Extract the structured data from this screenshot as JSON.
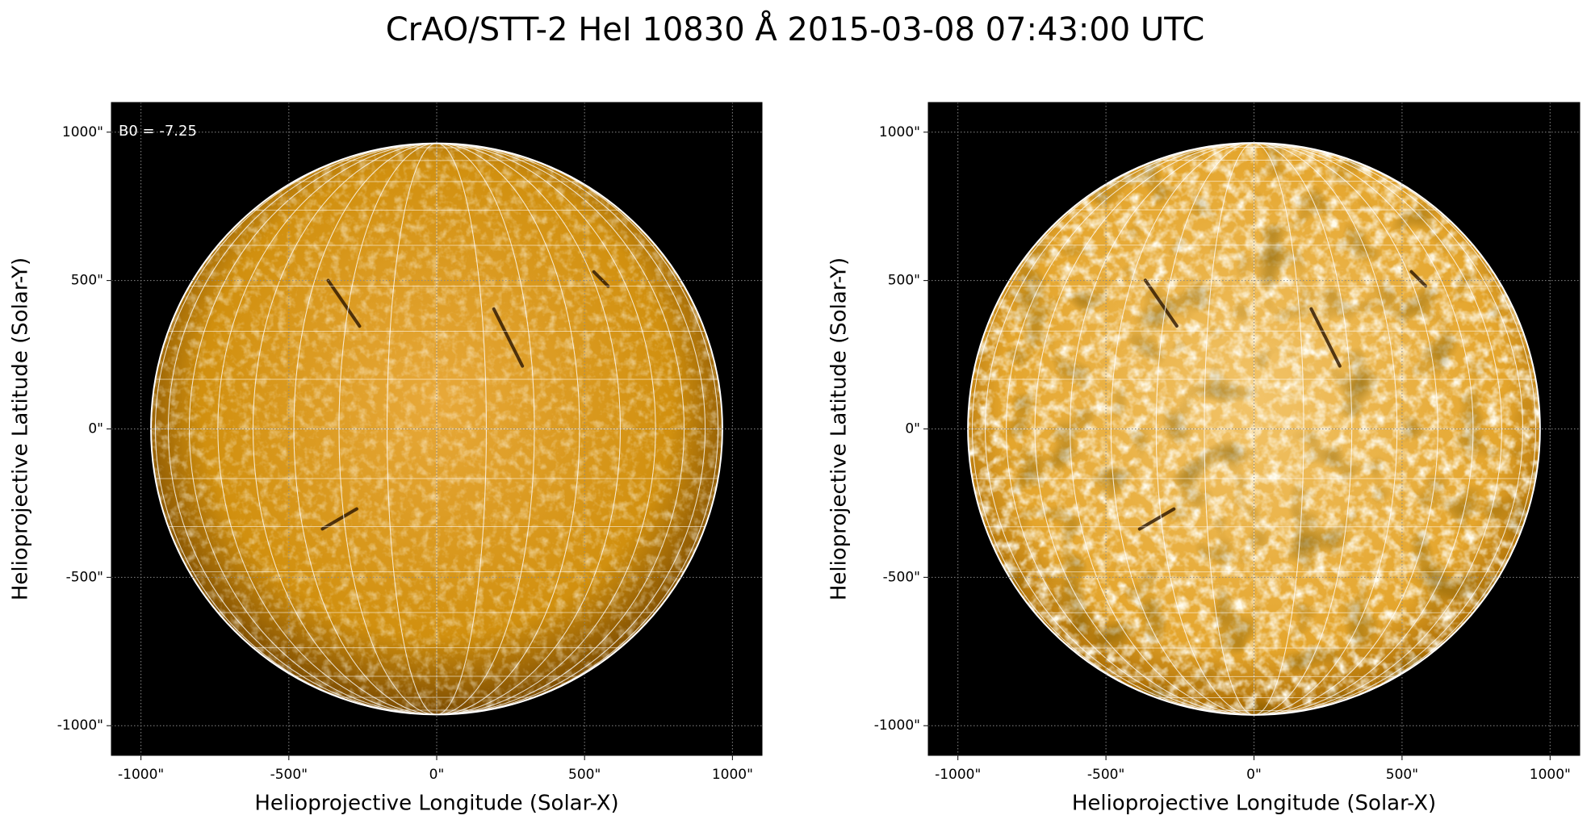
{
  "title": "CrAO/STT-2 HeI 10830 Å 2015-03-08 07:43:00 UTC",
  "chart_data": [
    {
      "type": "image",
      "annotation": "B0 = -7.25",
      "xlabel": "Helioprojective Longitude (Solar-X)",
      "ylabel": "Helioprojective Latitude (Solar-Y)",
      "xlim": [
        -1100,
        1100
      ],
      "ylim": [
        -1100,
        1100
      ],
      "xticks": [
        {
          "value": -1000,
          "label": "-1000\""
        },
        {
          "value": -500,
          "label": "-500\""
        },
        {
          "value": 0,
          "label": "0\""
        },
        {
          "value": 500,
          "label": "500\""
        },
        {
          "value": 1000,
          "label": "1000\""
        }
      ],
      "yticks": [
        {
          "value": -1000,
          "label": "-1000\""
        },
        {
          "value": -500,
          "label": "-500\""
        },
        {
          "value": 0,
          "label": "0\""
        },
        {
          "value": 500,
          "label": "500\""
        },
        {
          "value": 1000,
          "label": "1000\""
        }
      ],
      "grid": true
    },
    {
      "type": "image",
      "xlabel": "Helioprojective Longitude (Solar-X)",
      "ylabel": "Helioprojective Latitude (Solar-Y)",
      "xlim": [
        -1100,
        1100
      ],
      "ylim": [
        -1100,
        1100
      ],
      "xticks": [
        {
          "value": -1000,
          "label": "-1000\""
        },
        {
          "value": -500,
          "label": "-500\""
        },
        {
          "value": 0,
          "label": "0\""
        },
        {
          "value": 500,
          "label": "500\""
        },
        {
          "value": 1000,
          "label": "1000\""
        }
      ],
      "yticks": [
        {
          "value": -1000,
          "label": "-1000\""
        },
        {
          "value": -500,
          "label": "-500\""
        },
        {
          "value": 0,
          "label": "0\""
        },
        {
          "value": 500,
          "label": "500\""
        },
        {
          "value": 1000,
          "label": "1000\""
        }
      ],
      "grid": true
    }
  ]
}
